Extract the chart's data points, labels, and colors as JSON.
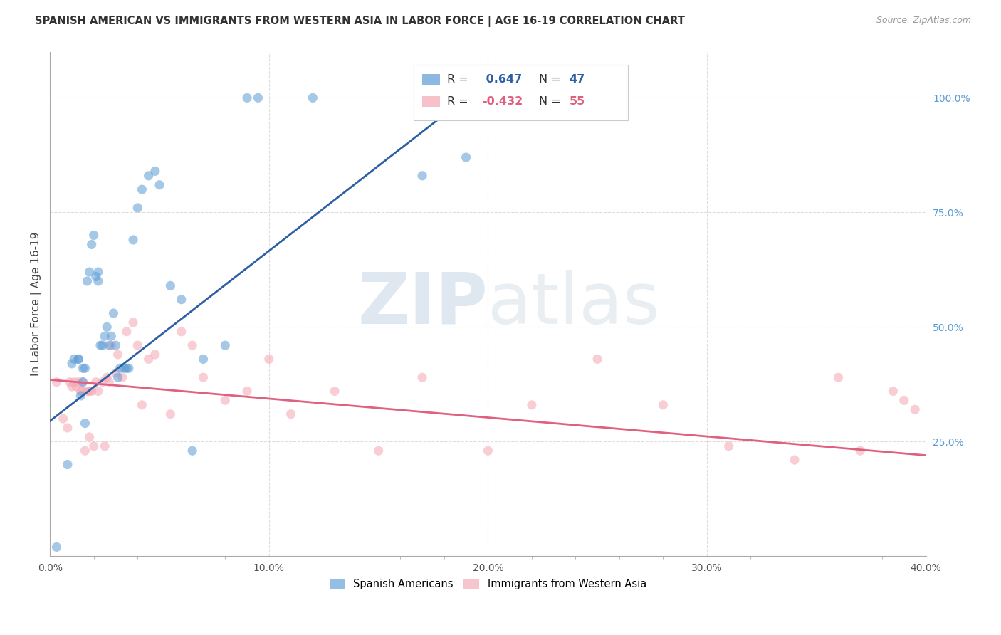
{
  "title": "SPANISH AMERICAN VS IMMIGRANTS FROM WESTERN ASIA IN LABOR FORCE | AGE 16-19 CORRELATION CHART",
  "source": "Source: ZipAtlas.com",
  "ylabel": "In Labor Force | Age 16-19",
  "xlim": [
    0.0,
    0.4
  ],
  "ylim": [
    0.0,
    1.1
  ],
  "x_tick_labels": [
    "0.0%",
    "",
    "",
    "",
    "",
    "10.0%",
    "",
    "",
    "",
    "",
    "20.0%",
    "",
    "",
    "",
    "",
    "30.0%",
    "",
    "",
    "",
    "",
    "40.0%"
  ],
  "x_tick_values": [
    0.0,
    0.02,
    0.04,
    0.06,
    0.08,
    0.1,
    0.12,
    0.14,
    0.16,
    0.18,
    0.2,
    0.22,
    0.24,
    0.26,
    0.28,
    0.3,
    0.32,
    0.34,
    0.36,
    0.38,
    0.4
  ],
  "y_tick_labels_right": [
    "100.0%",
    "75.0%",
    "50.0%",
    "25.0%"
  ],
  "y_tick_values_right": [
    1.0,
    0.75,
    0.5,
    0.25
  ],
  "blue_color": "#5B9BD5",
  "pink_color": "#F4A7B2",
  "blue_line_color": "#2E5FA3",
  "pink_line_color": "#E06080",
  "blue_scatter_x": [
    0.003,
    0.008,
    0.01,
    0.011,
    0.013,
    0.013,
    0.014,
    0.015,
    0.015,
    0.016,
    0.016,
    0.017,
    0.018,
    0.019,
    0.02,
    0.021,
    0.022,
    0.022,
    0.023,
    0.024,
    0.025,
    0.026,
    0.027,
    0.028,
    0.029,
    0.03,
    0.031,
    0.032,
    0.034,
    0.035,
    0.036,
    0.038,
    0.04,
    0.042,
    0.045,
    0.048,
    0.05,
    0.055,
    0.06,
    0.065,
    0.07,
    0.08,
    0.09,
    0.095,
    0.12,
    0.17,
    0.19
  ],
  "blue_scatter_y": [
    0.02,
    0.2,
    0.42,
    0.43,
    0.43,
    0.43,
    0.35,
    0.38,
    0.41,
    0.29,
    0.41,
    0.6,
    0.62,
    0.68,
    0.7,
    0.61,
    0.62,
    0.6,
    0.46,
    0.46,
    0.48,
    0.5,
    0.46,
    0.48,
    0.53,
    0.46,
    0.39,
    0.41,
    0.41,
    0.41,
    0.41,
    0.69,
    0.76,
    0.8,
    0.83,
    0.84,
    0.81,
    0.59,
    0.56,
    0.23,
    0.43,
    0.46,
    1.0,
    1.0,
    1.0,
    0.83,
    0.87
  ],
  "pink_scatter_x": [
    0.003,
    0.006,
    0.008,
    0.009,
    0.01,
    0.011,
    0.012,
    0.013,
    0.014,
    0.015,
    0.015,
    0.016,
    0.017,
    0.018,
    0.018,
    0.019,
    0.02,
    0.021,
    0.022,
    0.024,
    0.025,
    0.026,
    0.027,
    0.028,
    0.03,
    0.031,
    0.033,
    0.035,
    0.038,
    0.04,
    0.042,
    0.045,
    0.048,
    0.055,
    0.06,
    0.065,
    0.07,
    0.08,
    0.09,
    0.1,
    0.11,
    0.13,
    0.15,
    0.17,
    0.2,
    0.22,
    0.25,
    0.28,
    0.31,
    0.34,
    0.36,
    0.37,
    0.385,
    0.39,
    0.395
  ],
  "pink_scatter_y": [
    0.38,
    0.3,
    0.28,
    0.38,
    0.37,
    0.38,
    0.37,
    0.38,
    0.36,
    0.38,
    0.36,
    0.23,
    0.36,
    0.26,
    0.36,
    0.36,
    0.24,
    0.38,
    0.36,
    0.38,
    0.24,
    0.39,
    0.38,
    0.46,
    0.4,
    0.44,
    0.39,
    0.49,
    0.51,
    0.46,
    0.33,
    0.43,
    0.44,
    0.31,
    0.49,
    0.46,
    0.39,
    0.34,
    0.36,
    0.43,
    0.31,
    0.36,
    0.23,
    0.39,
    0.23,
    0.33,
    0.43,
    0.33,
    0.24,
    0.21,
    0.39,
    0.23,
    0.36,
    0.34,
    0.32
  ],
  "blue_trend_x": [
    0.0,
    0.19
  ],
  "blue_trend_y": [
    0.295,
    1.0
  ],
  "pink_trend_x": [
    0.0,
    0.4
  ],
  "pink_trend_y": [
    0.385,
    0.22
  ],
  "watermark_zip": "ZIP",
  "watermark_atlas": "atlas",
  "background_color": "#FFFFFF",
  "grid_color": "#DDDDDD",
  "legend_label_blue": "Spanish Americans",
  "legend_label_pink": "Immigrants from Western Asia"
}
